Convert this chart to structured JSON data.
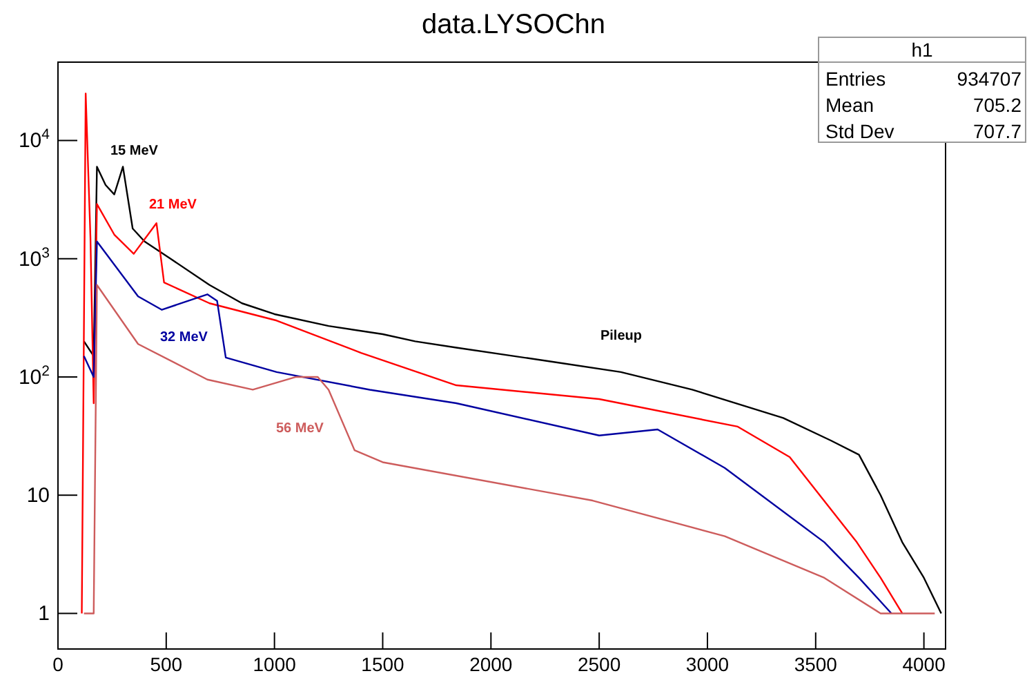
{
  "chart_data": {
    "type": "line",
    "title": "data.LYSOChn",
    "log": "y",
    "xlim": [
      0,
      4100
    ],
    "ylim": [
      0.5,
      46000
    ],
    "xticks": [
      0,
      500,
      1000,
      1500,
      2000,
      2500,
      3000,
      3500,
      4000
    ],
    "yticks": [
      1,
      10,
      {
        "value": 100,
        "label": "10$^{2}$"
      },
      {
        "value": 1000,
        "label": "10$^{3}$"
      },
      {
        "value": 10000,
        "label": "10$^{4}$"
      }
    ],
    "marker": "none",
    "grid": false,
    "series": [
      {
        "name": "15 MeV",
        "color": "#000000",
        "x": [
          120,
          165,
          180,
          220,
          260,
          300,
          345,
          400,
          520,
          700,
          850,
          1000,
          1250,
          1500,
          1650,
          1840,
          2290,
          2600,
          2930,
          3350,
          3570,
          3700,
          3800,
          3900,
          4000,
          4080
        ],
        "values": [
          200,
          150,
          6000,
          4200,
          3500,
          6000,
          1800,
          1400,
          1000,
          600,
          420,
          340,
          270,
          230,
          200,
          177,
          134,
          110,
          78,
          45,
          29,
          22,
          10,
          4,
          2,
          1
        ]
      },
      {
        "name": "21 MeV",
        "color": "#ff0000",
        "x": [
          110,
          128,
          150,
          165,
          180,
          260,
          350,
          455,
          490,
          700,
          1010,
          1400,
          1840,
          2500,
          3140,
          3380,
          3690,
          3800,
          3900
        ],
        "values": [
          1,
          25000,
          1500,
          60,
          2900,
          1600,
          1100,
          2000,
          630,
          420,
          300,
          160,
          85,
          65,
          38,
          21,
          4,
          2,
          1
        ]
      },
      {
        "name": "32 MeV",
        "color": "#0000a0",
        "x": [
          120,
          165,
          180,
          370,
          480,
          690,
          735,
          775,
          1010,
          1440,
          1840,
          2500,
          2770,
          3080,
          3540,
          3700,
          3850
        ],
        "values": [
          150,
          100,
          1400,
          480,
          370,
          500,
          440,
          146,
          110,
          78,
          60,
          32,
          36,
          17,
          4,
          2,
          1
        ]
      },
      {
        "name": "56 MeV",
        "color": "#cd5c5c",
        "x": [
          120,
          165,
          180,
          370,
          690,
          900,
          1100,
          1200,
          1250,
          1370,
          1500,
          2470,
          3080,
          3540,
          3800,
          4050
        ],
        "values": [
          1,
          1,
          600,
          190,
          95,
          78,
          100,
          100,
          78,
          24,
          19,
          9,
          4.5,
          2,
          1,
          1
        ]
      }
    ],
    "annotations": [
      "Pileup",
      "h1",
      "Entries",
      "934707",
      "Mean",
      "705.2",
      "Std Dev",
      "707.7"
    ]
  }
}
